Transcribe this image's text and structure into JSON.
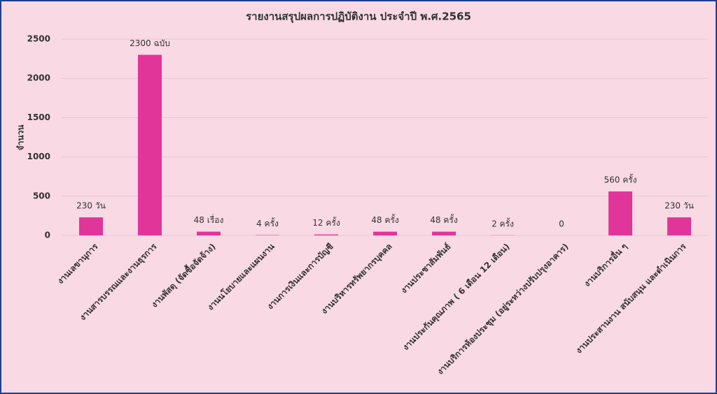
{
  "chart_data": {
    "type": "bar",
    "title": "รายงานสรุปผลการปฏิบัติงาน ประจำปี พ.ศ.2565",
    "y_label": "จำนวน",
    "categories": [
      "งานเลขานุการ",
      "งานสารบรรณและงานธุรการ",
      "งานพัสดุ (จัดซื้อจัดจ้าง)",
      "งานนโยบายและแผนงาน",
      "งานการเงินและการบัญชี",
      "งานบริหารทรัพยากรบุคคล",
      "งานประชาสัมพันธ์",
      "งานประกันคุณภาพ ( 6 เดือน 12 เดือน)",
      "งานบริการห้องประชุม (อยู่ระหว่างปรับปรุงอาคาร)",
      "งานบริการอื่น ๆ",
      "งานประสานงาน สนับสนุน และดำเนินการ"
    ],
    "values": [
      230,
      2300,
      48,
      4,
      12,
      48,
      48,
      2,
      0,
      560,
      230
    ],
    "value_labels": [
      "230 วัน",
      "2300 ฉบับ",
      "48 เรื่อง",
      "4 ครั้ง",
      "12 ครั้ง",
      "48 ครั้ง",
      "48 ครั้ง",
      "2 ครั้ง",
      "0",
      "560 ครั้ง",
      "230 วัน"
    ],
    "color": "#e2359a",
    "ylim": [
      0,
      2500
    ],
    "yticks": [
      0,
      500,
      1000,
      1500,
      2000,
      2500
    ],
    "grid": true
  }
}
